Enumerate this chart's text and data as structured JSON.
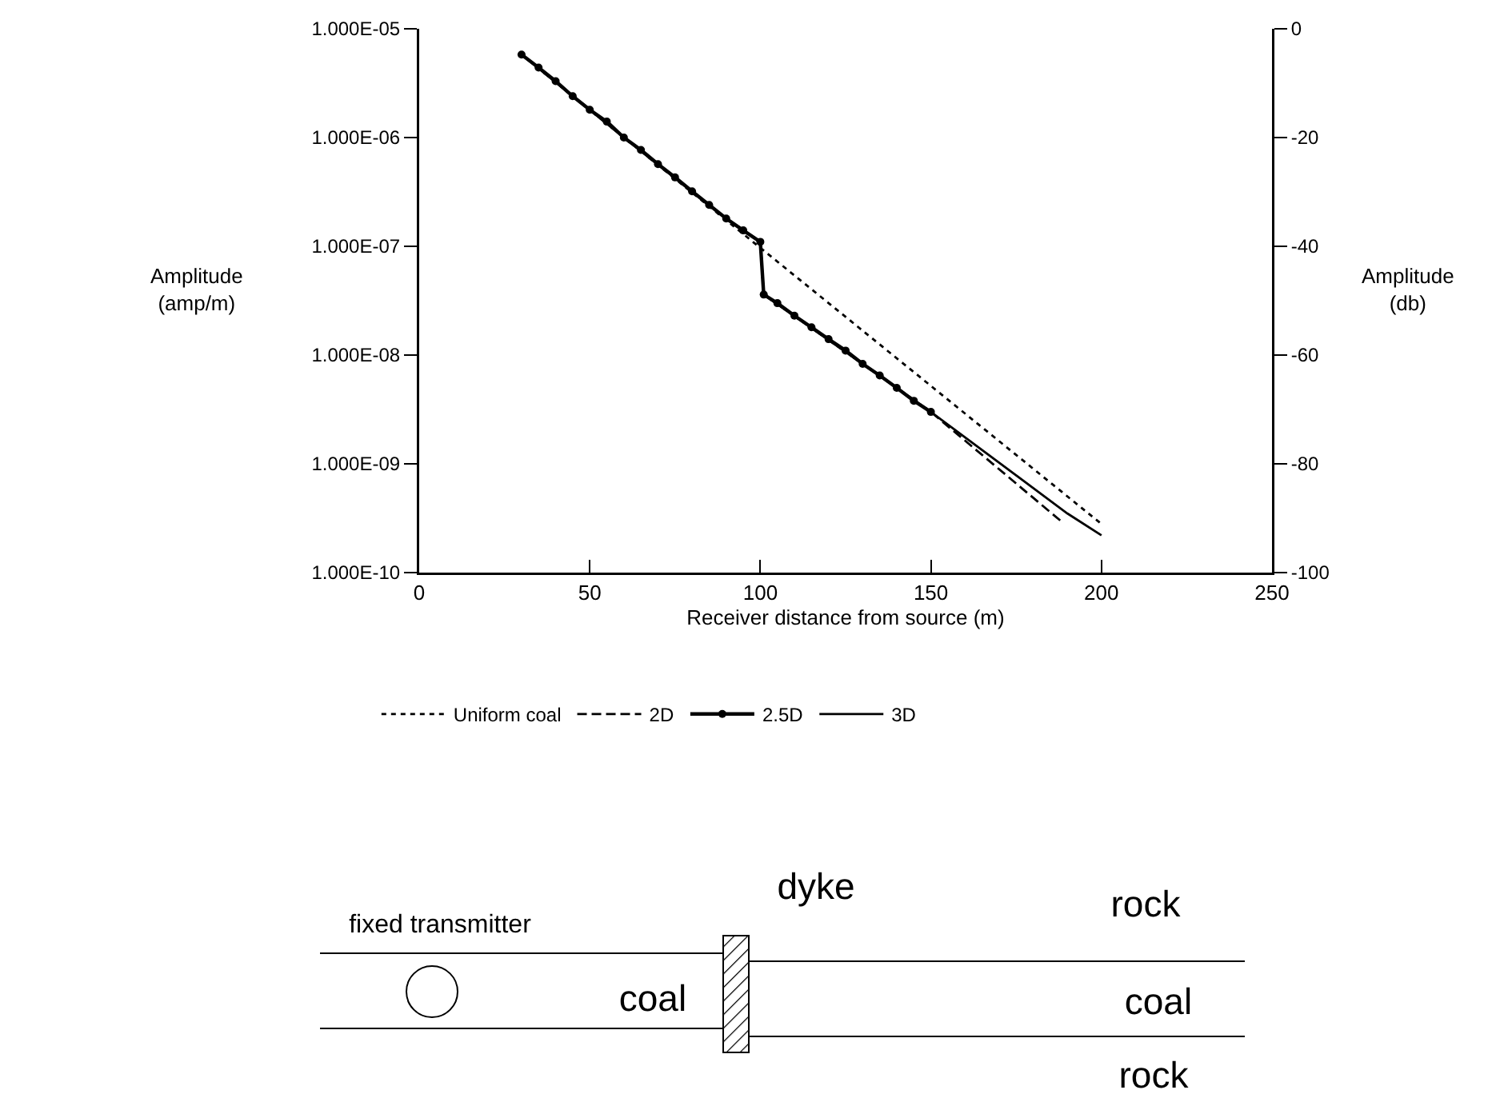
{
  "chart_data": {
    "type": "line",
    "xlabel": "Receiver distance from source (m)",
    "ylabel": "Amplitude (amp/m)",
    "y2label": "Amplitude (db)",
    "log": "y",
    "xlim": [
      0,
      250
    ],
    "xticks": [
      0,
      50,
      100,
      150,
      200,
      250
    ],
    "ylim": [
      1e-10,
      1e-05
    ],
    "yticks": [
      {
        "value": 1e-05,
        "label": "1.000E-05"
      },
      {
        "value": 1e-06,
        "label": "1.000E-06"
      },
      {
        "value": 1e-07,
        "label": "1.000E-07"
      },
      {
        "value": 1e-08,
        "label": "1.000E-08"
      },
      {
        "value": 1e-09,
        "label": "1.000E-09"
      },
      {
        "value": 1e-10,
        "label": "1.000E-10"
      }
    ],
    "y2lim": [
      -100,
      0
    ],
    "y2ticks": [
      0,
      -20,
      -40,
      -60,
      -80,
      -100
    ],
    "grid": false,
    "legend": "bottom",
    "series": [
      {
        "name": "Uniform coal",
        "color": "#000000",
        "line_style": "dotted",
        "x": [
          30,
          200
        ],
        "values": [
          5.8e-06,
          2.8e-10
        ]
      },
      {
        "name": "2D",
        "color": "#000000",
        "line_style": "dashed",
        "x": [
          30,
          60,
          90,
          100,
          101,
          130,
          150,
          188
        ],
        "values": [
          5.8e-06,
          1e-06,
          1.8e-07,
          1.1e-07,
          3.6e-08,
          8.3e-09,
          3e-09,
          3e-10
        ]
      },
      {
        "name": "2.5D",
        "color": "#000000",
        "line_style": "solid",
        "marker": "circle",
        "x": [
          30,
          35,
          40,
          45,
          50,
          55,
          60,
          65,
          70,
          75,
          80,
          85,
          90,
          95,
          100,
          101,
          105,
          110,
          115,
          120,
          125,
          130,
          135,
          140,
          145,
          150
        ],
        "values": [
          5.8e-06,
          4.4e-06,
          3.3e-06,
          2.4e-06,
          1.8e-06,
          1.4e-06,
          1e-06,
          7.7e-07,
          5.7e-07,
          4.3e-07,
          3.2e-07,
          2.4e-07,
          1.8e-07,
          1.4e-07,
          1.1e-07,
          3.6e-08,
          3e-08,
          2.3e-08,
          1.8e-08,
          1.4e-08,
          1.1e-08,
          8.3e-09,
          6.5e-09,
          5e-09,
          3.8e-09,
          3e-09
        ]
      },
      {
        "name": "3D",
        "color": "#000000",
        "line_style": "solid",
        "x": [
          30,
          60,
          90,
          100,
          101,
          130,
          150,
          190,
          200
        ],
        "values": [
          5.8e-06,
          1e-06,
          1.8e-07,
          1.1e-07,
          3.6e-08,
          8.3e-09,
          3e-09,
          3.5e-10,
          2.2e-10
        ]
      }
    ],
    "annotations": [
      "fixed transmitter",
      "dyke",
      "rock",
      "coal",
      "coal",
      "rock"
    ]
  }
}
